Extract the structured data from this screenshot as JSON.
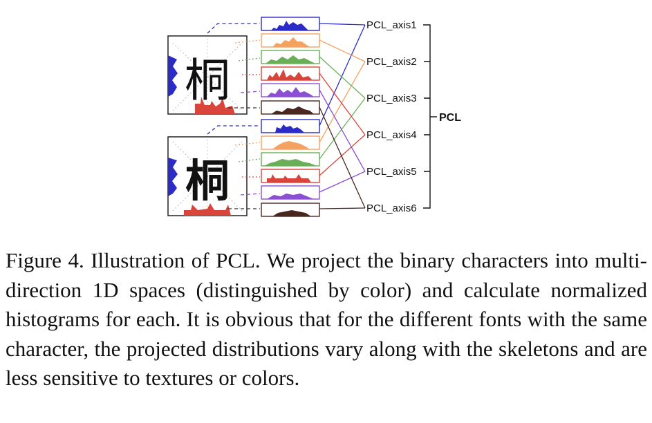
{
  "figure": {
    "characters": [
      "桐",
      "桐"
    ],
    "axes": [
      "PCL_axis1",
      "PCL_axis2",
      "PCL_axis3",
      "PCL_axis4",
      "PCL_axis5",
      "PCL_axis6"
    ],
    "group_label": "PCL",
    "colors": {
      "axis1": "#2b2bc8",
      "axis2": "#f4a262",
      "axis3": "#6aaf58",
      "axis4": "#d9453a",
      "axis5": "#8a4fd2",
      "axis6": "#4a2621"
    }
  },
  "caption": "Figure 4.  Illustration of PCL. We project the binary characters into multi-direction 1D spaces (distinguished by color) and calculate normalized histograms for each.  It is obvious that for the different fonts with the same character, the projected distributions vary along with the skeletons and are less sensitive to textures or colors."
}
